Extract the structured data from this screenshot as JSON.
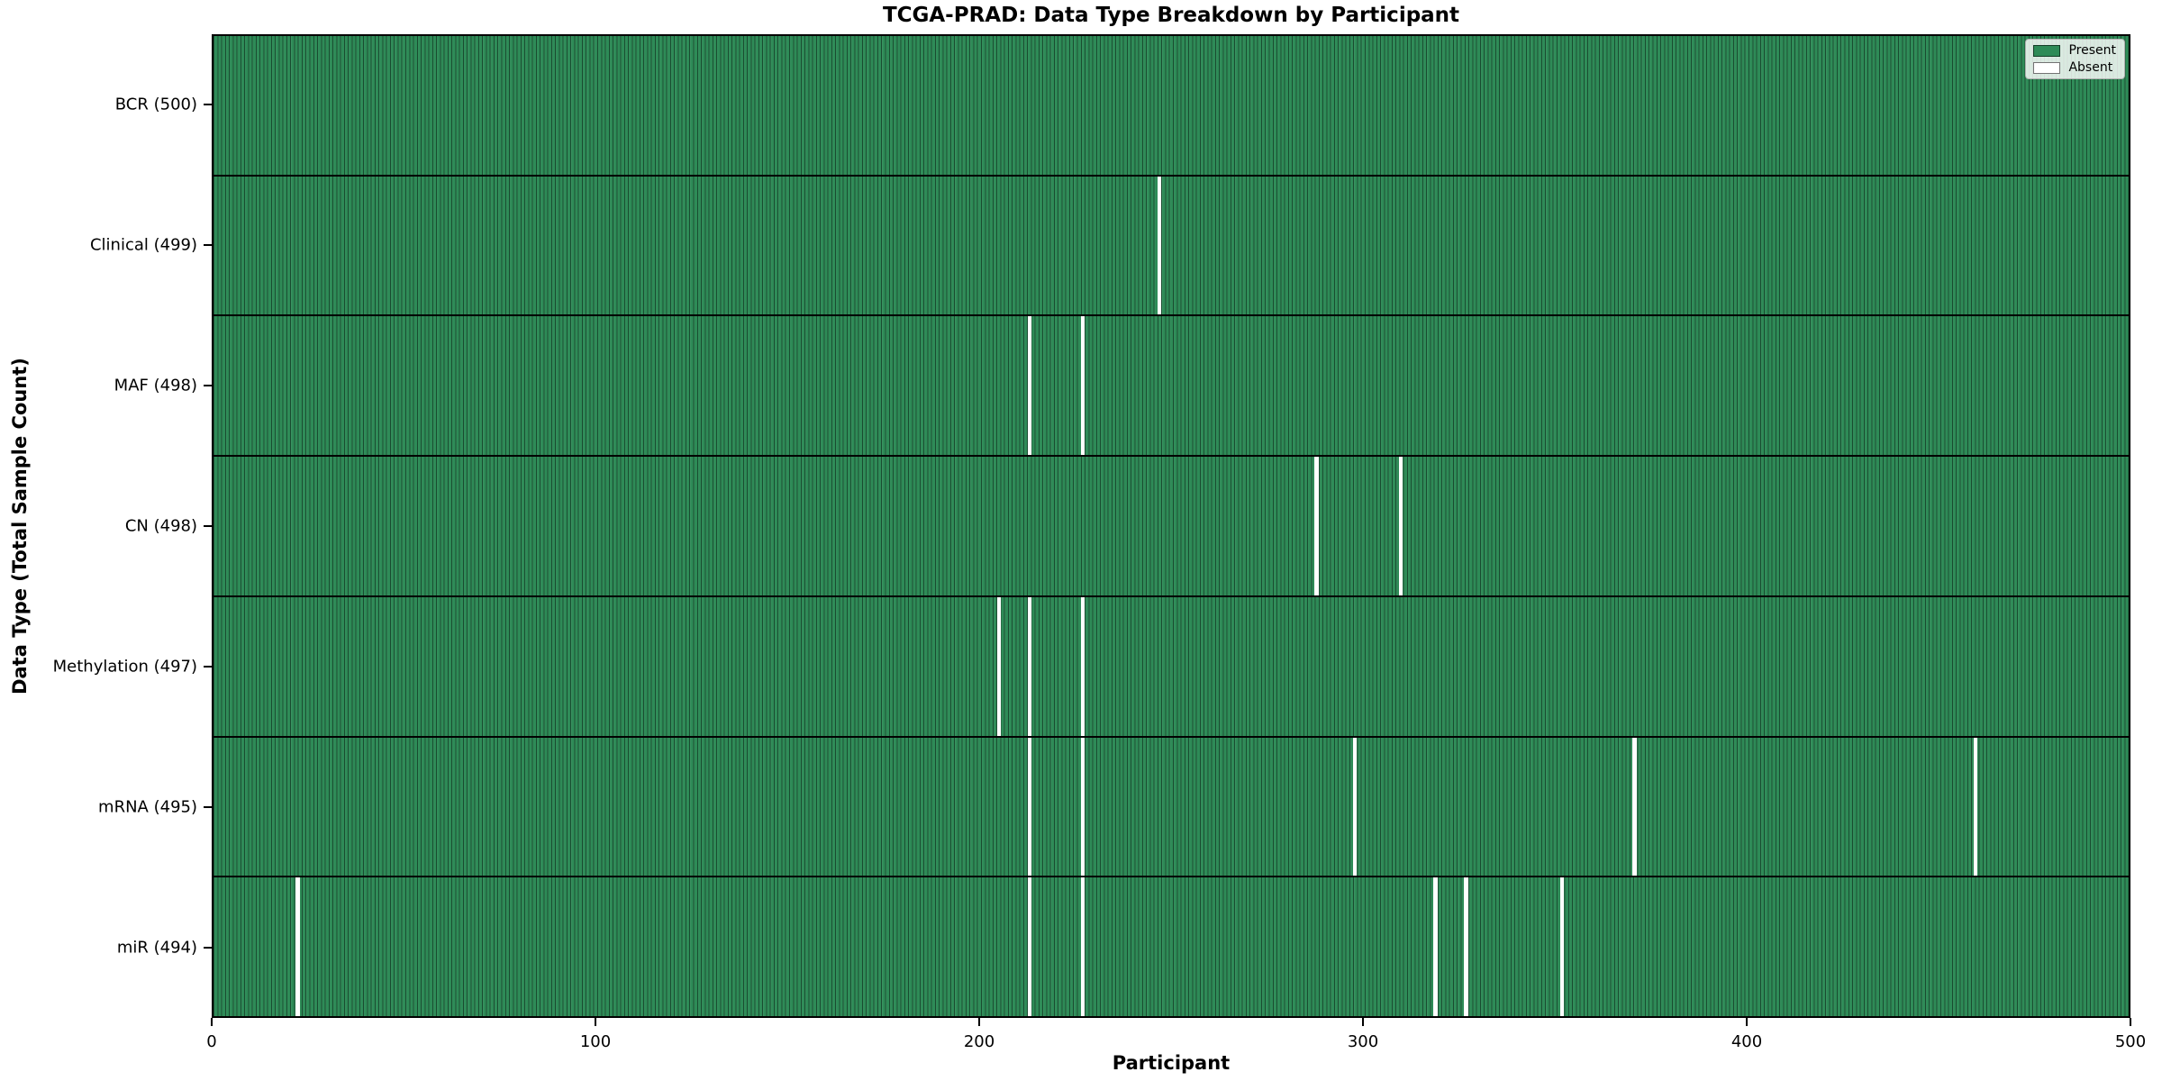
{
  "chart_data": {
    "type": "heatmap",
    "title": "TCGA-PRAD: Data Type Breakdown by Participant",
    "xlabel": "Participant",
    "ylabel": "Data Type (Total Sample Count)",
    "x_ticks": [
      0,
      100,
      200,
      300,
      400,
      500
    ],
    "x_range": [
      0,
      500
    ],
    "n_participants": 500,
    "grid": false,
    "legend_position": "upper right",
    "colors": {
      "present": "#2e8b57",
      "absent": "#ffffff",
      "cell_edge": "rgba(0,0,0,0.45)",
      "row_separator": "#000000"
    },
    "legend": [
      {
        "label": "Present",
        "color": "#2e8b57"
      },
      {
        "label": "Absent",
        "color": "#ffffff"
      }
    ],
    "rows": [
      {
        "label": "BCR (500)",
        "data_type": "BCR",
        "total": 500,
        "absent_participants": []
      },
      {
        "label": "Clinical (499)",
        "data_type": "Clinical",
        "total": 499,
        "absent_participants": [
          247
        ]
      },
      {
        "label": "MAF (498)",
        "data_type": "MAF",
        "total": 498,
        "absent_participants": [
          213,
          227
        ]
      },
      {
        "label": "CN (498)",
        "data_type": "CN",
        "total": 498,
        "absent_participants": [
          288,
          310
        ]
      },
      {
        "label": "Methylation (497)",
        "data_type": "Methylation",
        "total": 497,
        "absent_participants": [
          205,
          213,
          227
        ]
      },
      {
        "label": "mRNA (495)",
        "data_type": "mRNA",
        "total": 495,
        "absent_participants": [
          213,
          227,
          298,
          371,
          460
        ]
      },
      {
        "label": "miR (494)",
        "data_type": "miR",
        "total": 494,
        "absent_participants": [
          22,
          213,
          227,
          319,
          327,
          352
        ]
      }
    ]
  }
}
